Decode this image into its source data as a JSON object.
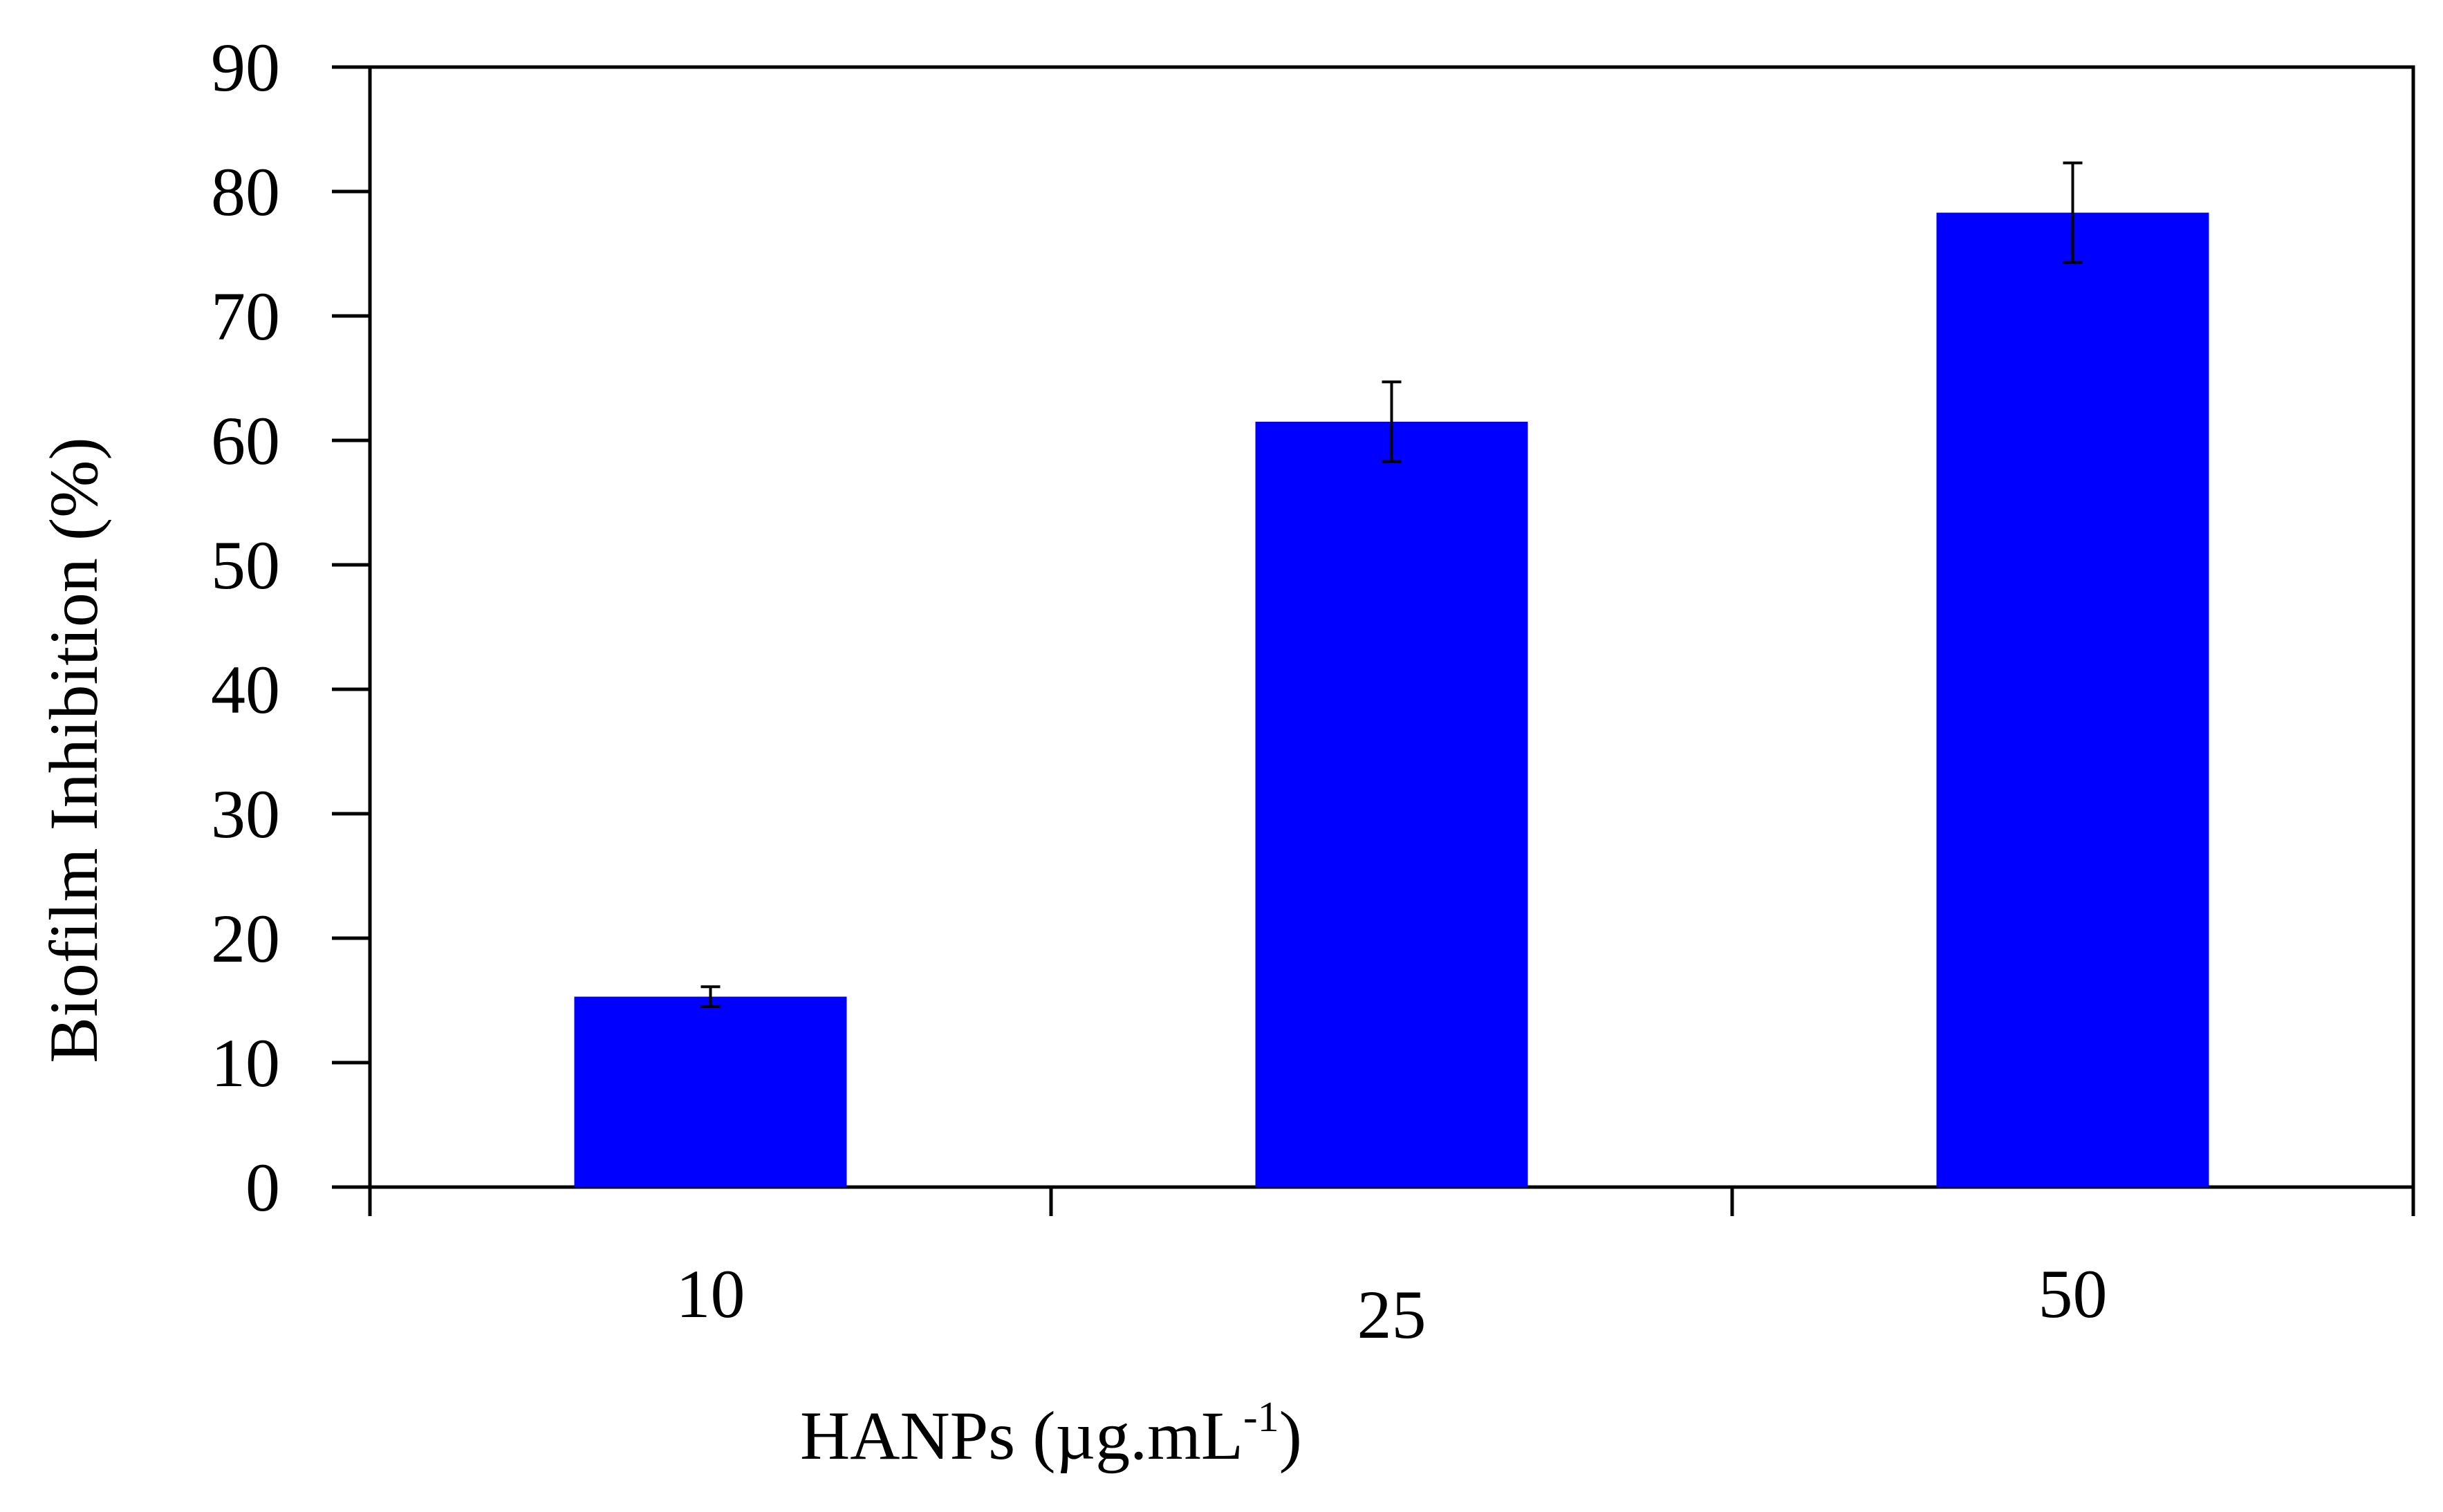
{
  "chart_data": {
    "type": "bar",
    "title": "",
    "xlabel": "HANPs (µg.mL",
    "xlabel_superscript": "-1",
    "xlabel_close": ")",
    "ylabel": "Biofilm Inhibition (%)",
    "categories": [
      "10",
      "25",
      "50"
    ],
    "series": [
      {
        "values": [
          15.3,
          61.5,
          78.3
        ],
        "errors": [
          0.8,
          3.2,
          4.0
        ],
        "color": "#0000FF"
      }
    ],
    "ylim": [
      0,
      90
    ],
    "yticks": [
      0,
      10,
      20,
      30,
      40,
      50,
      60,
      70,
      80,
      90
    ],
    "grid": false,
    "legend": "none"
  }
}
